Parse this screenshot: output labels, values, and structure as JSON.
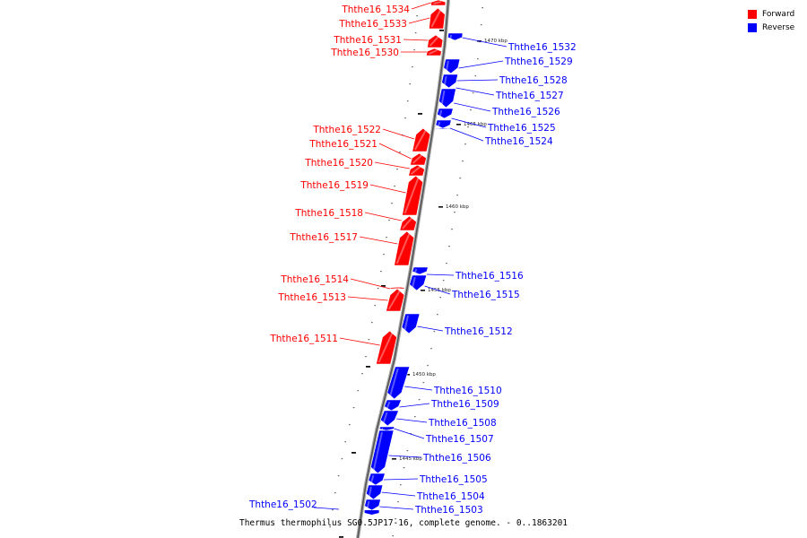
{
  "legend": {
    "forward_label": "Forward",
    "reverse_label": "Reverse",
    "forward_color": "#ff0000",
    "reverse_color": "#0000ff"
  },
  "caption": "Thermus thermophilus SG0.5JP17-16, complete genome. - 0..1863201",
  "genes_forward": [
    "Ththe16_1534",
    "Ththe16_1533",
    "Ththe16_1531",
    "Ththe16_1530",
    "Ththe16_1522",
    "Ththe16_1521",
    "Ththe16_1520",
    "Ththe16_1519",
    "Ththe16_1518",
    "Ththe16_1517",
    "Ththe16_1514",
    "Ththe16_1513",
    "Ththe16_1511"
  ],
  "genes_reverse": [
    "Ththe16_1532",
    "Ththe16_1529",
    "Ththe16_1528",
    "Ththe16_1527",
    "Ththe16_1526",
    "Ththe16_1525",
    "Ththe16_1524",
    "Ththe16_1516",
    "Ththe16_1515",
    "Ththe16_1512",
    "Ththe16_1510",
    "Ththe16_1509",
    "Ththe16_1508",
    "Ththe16_1507",
    "Ththe16_1506",
    "Ththe16_1505",
    "Ththe16_1504",
    "Ththe16_1503",
    "Ththe16_1502"
  ],
  "position_ticks": [
    "1470 kbp",
    "1465 kbp",
    "1460 kbp",
    "1455 kbp",
    "1450 kbp",
    "1445 kbp"
  ]
}
